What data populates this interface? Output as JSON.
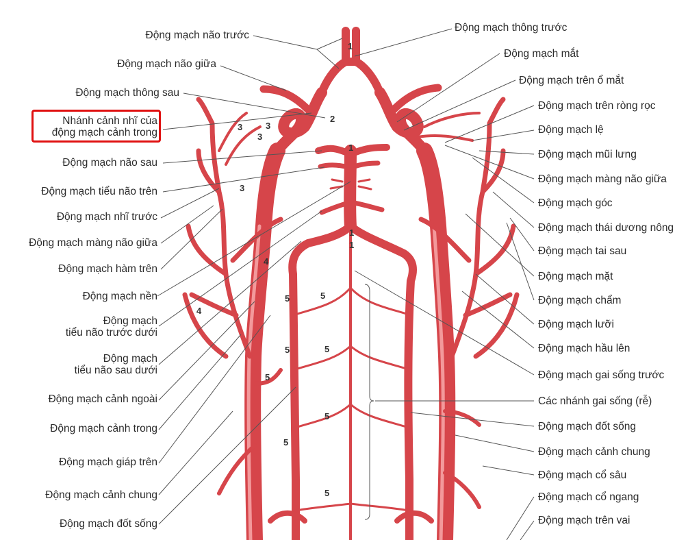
{
  "colors": {
    "artery": "#e44a4f",
    "artery_dark": "#c73338",
    "artery_light": "#f08a8c",
    "leader": "#555555",
    "highlight": "#e01010"
  },
  "labels_left": [
    {
      "id": "dm-nao-truoc",
      "text": "Động mạch não trước"
    },
    {
      "id": "dm-nao-giua",
      "text": "Động mạch não giữa"
    },
    {
      "id": "dm-thong-sau",
      "text": "Động mạch thông sau"
    },
    {
      "id": "nhanh-canh-nhi",
      "lines": [
        "Nhánh cảnh nhĩ của",
        "động mạch cảnh trong"
      ],
      "highlighted": true
    },
    {
      "id": "dm-nao-sau",
      "text": "Động mạch não sau"
    },
    {
      "id": "dm-tieu-nao-tren",
      "text": "Động mạch tiểu não trên"
    },
    {
      "id": "dm-nhi-truoc",
      "text": "Động mạch nhĩ trước"
    },
    {
      "id": "dm-mang-nao-giua-l",
      "text": "Động mạch màng não giữa"
    },
    {
      "id": "dm-ham-tren",
      "text": "Động mạch hàm trên"
    },
    {
      "id": "dm-nen",
      "text": "Động mạch nền"
    },
    {
      "id": "dm-tieu-nao-truoc-duoi",
      "lines": [
        "Động mạch",
        "tiểu não trước dưới"
      ]
    },
    {
      "id": "dm-tieu-nao-sau-duoi",
      "lines": [
        "Động mạch",
        "tiểu não sau dưới"
      ]
    },
    {
      "id": "dm-canh-ngoai",
      "text": "Động mạch cảnh ngoài"
    },
    {
      "id": "dm-canh-trong",
      "text": "Động mạch cảnh trong"
    },
    {
      "id": "dm-giap-tren",
      "text": "Động mạch giáp trên"
    },
    {
      "id": "dm-canh-chung-l",
      "text": "Động mạch cảnh chung"
    },
    {
      "id": "dm-dot-song-l",
      "text": "Động mạch đốt sống"
    }
  ],
  "labels_right": [
    {
      "id": "dm-thong-truoc",
      "text": "Động mạch thông trước"
    },
    {
      "id": "dm-mat-eye",
      "text": "Động mạch mắt"
    },
    {
      "id": "dm-tren-o-mat",
      "text": "Động mạch trên ổ mắt"
    },
    {
      "id": "dm-tren-rong-roc",
      "text": "Động mạch trên ròng rọc"
    },
    {
      "id": "dm-le",
      "text": "Động mạch lệ"
    },
    {
      "id": "dm-mui-lung",
      "text": "Động mạch mũi lưng"
    },
    {
      "id": "dm-mang-nao-giua-r",
      "text": "Động mạch màng não giữa"
    },
    {
      "id": "dm-goc",
      "text": "Động mạch góc"
    },
    {
      "id": "dm-thai-duong-nong",
      "text": "Động mạch thái dương nông"
    },
    {
      "id": "dm-tai-sau",
      "text": "Động mạch tai sau"
    },
    {
      "id": "dm-mat-face",
      "text": "Động mạch mặt"
    },
    {
      "id": "dm-cham",
      "text": "Động mạch chẩm"
    },
    {
      "id": "dm-luoi",
      "text": "Động mạch lưỡi"
    },
    {
      "id": "dm-hau-len",
      "text": "Động mạch hầu lên"
    },
    {
      "id": "dm-gai-song-truoc",
      "text": "Động mạch gai sống trước"
    },
    {
      "id": "cac-nhanh-gai-song",
      "text": "Các nhánh gai sống (rễ)"
    },
    {
      "id": "dm-dot-song-r",
      "text": "Động mạch đốt sống"
    },
    {
      "id": "dm-canh-chung-r",
      "text": "Động mạch cảnh chung"
    },
    {
      "id": "dm-co-sau",
      "text": "Động mạch cổ sâu"
    },
    {
      "id": "dm-co-ngang",
      "text": "Động mạch cổ ngang"
    },
    {
      "id": "dm-tren-vai",
      "text": "Động mạch trên vai"
    }
  ],
  "numbers": [
    "1",
    "2",
    "1",
    "3",
    "3",
    "3",
    "3",
    "1",
    "1",
    "4",
    "4",
    "5",
    "5",
    "5",
    "5",
    "5",
    "5",
    "5",
    "5"
  ]
}
